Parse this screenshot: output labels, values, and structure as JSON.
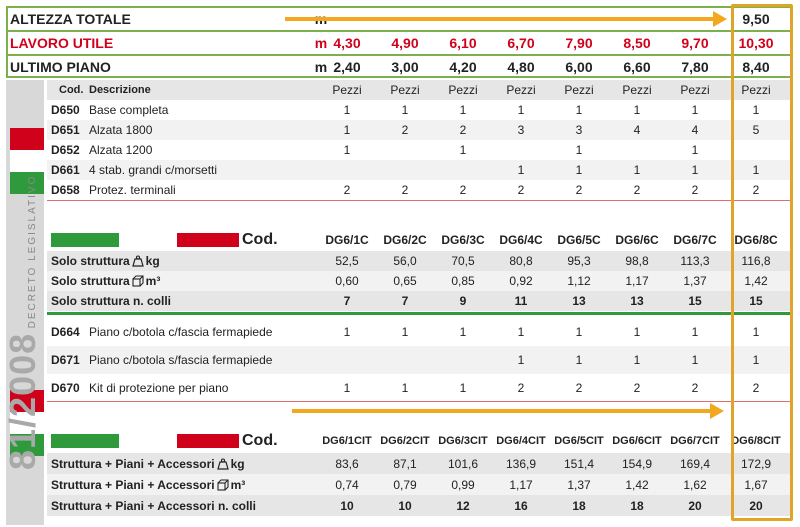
{
  "header": {
    "rows": [
      {
        "label": "ALTEZZA TOTALE",
        "unit": "m",
        "values": [
          "9,50"
        ],
        "class": ""
      },
      {
        "label": "LAVORO UTILE",
        "unit": "m",
        "values": [
          "4,30",
          "4,90",
          "6,10",
          "6,70",
          "7,90",
          "8,50",
          "9,70",
          "10,30"
        ],
        "class": "red"
      },
      {
        "label": "ULTIMO PIANO",
        "unit": "m",
        "values": [
          "2,40",
          "3,00",
          "4,20",
          "4,80",
          "6,00",
          "6,60",
          "7,80",
          "8,40"
        ],
        "class": ""
      }
    ]
  },
  "sidebar": {
    "big_text": "81/2008",
    "small_text": "DECRETO LEGISLATIVO"
  },
  "parts": {
    "col_code": "Cod.",
    "col_desc": "Descrizione",
    "col_unit": "Pezzi",
    "items": [
      {
        "code": "D650",
        "desc": "Base completa",
        "values": [
          "1",
          "1",
          "1",
          "1",
          "1",
          "1",
          "1",
          "1"
        ]
      },
      {
        "code": "D651",
        "desc": "Alzata 1800",
        "values": [
          "1",
          "2",
          "2",
          "3",
          "3",
          "4",
          "4",
          "5"
        ]
      },
      {
        "code": "D652",
        "desc": "Alzata 1200",
        "values": [
          "1",
          "",
          "1",
          "",
          "1",
          "",
          "1",
          ""
        ]
      },
      {
        "code": "D661",
        "desc": "4 stab. grandi c/morsetti",
        "values": [
          "",
          "",
          "",
          "1",
          "1",
          "1",
          "1",
          "1"
        ]
      },
      {
        "code": "D658",
        "desc": "Protez. terminali",
        "values": [
          "2",
          "2",
          "2",
          "2",
          "2",
          "2",
          "2",
          "2"
        ]
      }
    ]
  },
  "struct": {
    "cod_label": "Cod.",
    "codes": [
      "DG6/1C",
      "DG6/2C",
      "DG6/3C",
      "DG6/4C",
      "DG6/5C",
      "DG6/6C",
      "DG6/7C",
      "DG6/8C"
    ],
    "rows": [
      {
        "label": "Solo struttura",
        "unit": "kg",
        "icon": "weight-icon",
        "values": [
          "52,5",
          "56,0",
          "70,5",
          "80,8",
          "95,3",
          "98,8",
          "113,3",
          "116,8"
        ],
        "bold": false
      },
      {
        "label": "Solo struttura",
        "unit": "m³",
        "icon": "volume-icon",
        "values": [
          "0,60",
          "0,65",
          "0,85",
          "0,92",
          "1,12",
          "1,17",
          "1,37",
          "1,42"
        ],
        "bold": false
      },
      {
        "label": "Solo struttura n. colli",
        "unit": "",
        "icon": "",
        "values": [
          "7",
          "7",
          "9",
          "11",
          "13",
          "13",
          "15",
          "15"
        ],
        "bold": true
      }
    ]
  },
  "floors": {
    "items": [
      {
        "code": "D664",
        "desc": "Piano c/botola c/fascia fermapiede",
        "values": [
          "1",
          "1",
          "1",
          "1",
          "1",
          "1",
          "1",
          "1"
        ]
      },
      {
        "code": "D671",
        "desc": "Piano c/botola s/fascia fermapiede",
        "values": [
          "",
          "",
          "",
          "1",
          "1",
          "1",
          "1",
          "1"
        ]
      },
      {
        "code": "D670",
        "desc": "Kit di protezione per piano",
        "values": [
          "1",
          "1",
          "1",
          "2",
          "2",
          "2",
          "2",
          "2"
        ]
      }
    ]
  },
  "full": {
    "cod_label": "Cod.",
    "codes": [
      "DG6/1CIT",
      "DG6/2CIT",
      "DG6/3CIT",
      "DG6/4CIT",
      "DG6/5CIT",
      "DG6/6CIT",
      "DG6/7CIT",
      "DG6/8CIT"
    ],
    "rows": [
      {
        "label": "Struttura + Piani + Accessori",
        "unit": "kg",
        "icon": "weight-icon",
        "values": [
          "83,6",
          "87,1",
          "101,6",
          "136,9",
          "151,4",
          "154,9",
          "169,4",
          "172,9"
        ],
        "bold": false
      },
      {
        "label": "Struttura + Piani + Accessori",
        "unit": "m³",
        "icon": "volume-icon",
        "values": [
          "0,74",
          "0,79",
          "0,99",
          "1,17",
          "1,37",
          "1,42",
          "1,62",
          "1,67"
        ],
        "bold": false
      },
      {
        "label": "Struttura + Piani + Accessori n. colli",
        "unit": "",
        "icon": "",
        "values": [
          "10",
          "10",
          "12",
          "16",
          "18",
          "18",
          "20",
          "20"
        ],
        "bold": true
      }
    ]
  },
  "colors": {
    "green": "#2f9a3c",
    "red": "#d0021b",
    "highlight": "#e0a526",
    "arrow": "#f2a71e"
  }
}
